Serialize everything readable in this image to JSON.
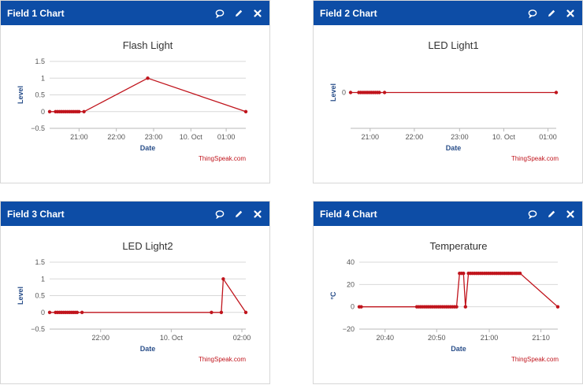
{
  "panels": [
    {
      "header": "Field 1 Chart",
      "icons": [
        "comment-icon",
        "pencil-icon",
        "close-icon"
      ],
      "credit": "ThingSpeak.com",
      "chart_data": {
        "type": "line",
        "title": "Flash Light",
        "xlabel": "Date",
        "ylabel": "Level",
        "ylim": [
          -0.5,
          1.5
        ],
        "yticks": [
          -0.5,
          0,
          0.5,
          1,
          1.5
        ],
        "ytick_labels": [
          "−0.5",
          "0",
          "0.5",
          "1",
          "1.5"
        ],
        "xlim": [
          0,
          100
        ],
        "xticks": [
          {
            "x": 15,
            "label": "21:00"
          },
          {
            "x": 34,
            "label": "22:00"
          },
          {
            "x": 53,
            "label": "23:00"
          },
          {
            "x": 72,
            "label": "10. Oct"
          },
          {
            "x": 90,
            "label": "01:00"
          }
        ],
        "series": [
          {
            "color": "#c0141c",
            "x": [
              0,
              3,
              4,
              5,
              6,
              7,
              8,
              9,
              10,
              11,
              12,
              13,
              14,
              15,
              17.5,
              50,
              100
            ],
            "y": [
              0,
              0,
              0,
              0,
              0,
              0,
              0,
              0,
              0,
              0,
              0,
              0,
              0,
              0,
              0,
              1,
              0
            ]
          }
        ]
      }
    },
    {
      "header": "Field 2 Chart",
      "icons": [
        "comment-icon",
        "pencil-icon",
        "close-icon"
      ],
      "credit": "ThingSpeak.com",
      "chart_data": {
        "type": "line",
        "title": "LED Light1",
        "xlabel": "Date",
        "ylabel": "Level",
        "ylim": [
          -1,
          1
        ],
        "yticks": [
          0
        ],
        "ytick_labels": [
          "0"
        ],
        "xlim": [
          0,
          100
        ],
        "xticks": [
          {
            "x": 9.5,
            "label": "21:00"
          },
          {
            "x": 31,
            "label": "22:00"
          },
          {
            "x": 53,
            "label": "23:00"
          },
          {
            "x": 74.5,
            "label": "10. Oct"
          },
          {
            "x": 96,
            "label": "01:00"
          }
        ],
        "series": [
          {
            "color": "#c0141c",
            "x": [
              0,
              4,
              5,
              6,
              7,
              8,
              9,
              10,
              11,
              12,
              13,
              14,
              16.5,
              100
            ],
            "y": [
              0,
              0,
              0,
              0,
              0,
              0,
              0,
              0,
              0,
              0,
              0,
              0,
              0,
              0
            ]
          }
        ]
      }
    },
    {
      "header": "Field 3 Chart",
      "icons": [
        "comment-icon",
        "pencil-icon",
        "close-icon"
      ],
      "credit": "ThingSpeak.com",
      "chart_data": {
        "type": "line",
        "title": "LED Light2",
        "xlabel": "Date",
        "ylabel": "Level",
        "ylim": [
          -0.5,
          1.5
        ],
        "yticks": [
          -0.5,
          0,
          0.5,
          1,
          1.5
        ],
        "ytick_labels": [
          "−0.5",
          "0",
          "0.5",
          "1",
          "1.5"
        ],
        "xlim": [
          0,
          100
        ],
        "xticks": [
          {
            "x": 26,
            "label": "22:00"
          },
          {
            "x": 62,
            "label": "10. Oct"
          },
          {
            "x": 98,
            "label": "02:00"
          }
        ],
        "series": [
          {
            "color": "#c0141c",
            "x": [
              0,
              3,
              4,
              5,
              6,
              7,
              8,
              9,
              10,
              11,
              12,
              13,
              14,
              16.5,
              82.5,
              87.5,
              88.5,
              100
            ],
            "y": [
              0,
              0,
              0,
              0,
              0,
              0,
              0,
              0,
              0,
              0,
              0,
              0,
              0,
              0,
              0,
              0,
              1,
              0
            ]
          }
        ]
      }
    },
    {
      "header": "Field 4 Chart",
      "icons": [
        "comment-icon",
        "pencil-icon",
        "close-icon"
      ],
      "credit": "ThingSpeak.com",
      "chart_data": {
        "type": "line",
        "title": "Temperature",
        "xlabel": "Date",
        "ylabel": "°C",
        "ylim": [
          -20,
          40
        ],
        "yticks": [
          -20,
          0,
          20,
          40
        ],
        "ytick_labels": [
          "−20",
          "0",
          "20",
          "40"
        ],
        "xlim": [
          0,
          100
        ],
        "xticks": [
          {
            "x": 13,
            "label": "20:40"
          },
          {
            "x": 39,
            "label": "20:50"
          },
          {
            "x": 65.5,
            "label": "21:00"
          },
          {
            "x": 91.5,
            "label": "21:10"
          }
        ],
        "series": [
          {
            "color": "#c0141c",
            "x": [
              0,
              1,
              29,
              30,
              31,
              32,
              33,
              34,
              35,
              36,
              37,
              38,
              39,
              40,
              41,
              42,
              43,
              44,
              45,
              46,
              47,
              48,
              49,
              50.5,
              51.5,
              52.5,
              53.5,
              55,
              56,
              57,
              58,
              59,
              60,
              61,
              62,
              63,
              64,
              65,
              66,
              67,
              68,
              69,
              70,
              71,
              72,
              73,
              74,
              75,
              76,
              77,
              78,
              79,
              80,
              81,
              100
            ],
            "y": [
              0,
              0,
              0,
              0,
              0,
              0,
              0,
              0,
              0,
              0,
              0,
              0,
              0,
              0,
              0,
              0,
              0,
              0,
              0,
              0,
              0,
              0,
              0,
              30,
              30,
              30,
              0,
              30,
              30,
              30,
              30,
              30,
              30,
              30,
              30,
              30,
              30,
              30,
              30,
              30,
              30,
              30,
              30,
              30,
              30,
              30,
              30,
              30,
              30,
              30,
              30,
              30,
              30,
              30,
              0
            ]
          }
        ]
      }
    }
  ]
}
